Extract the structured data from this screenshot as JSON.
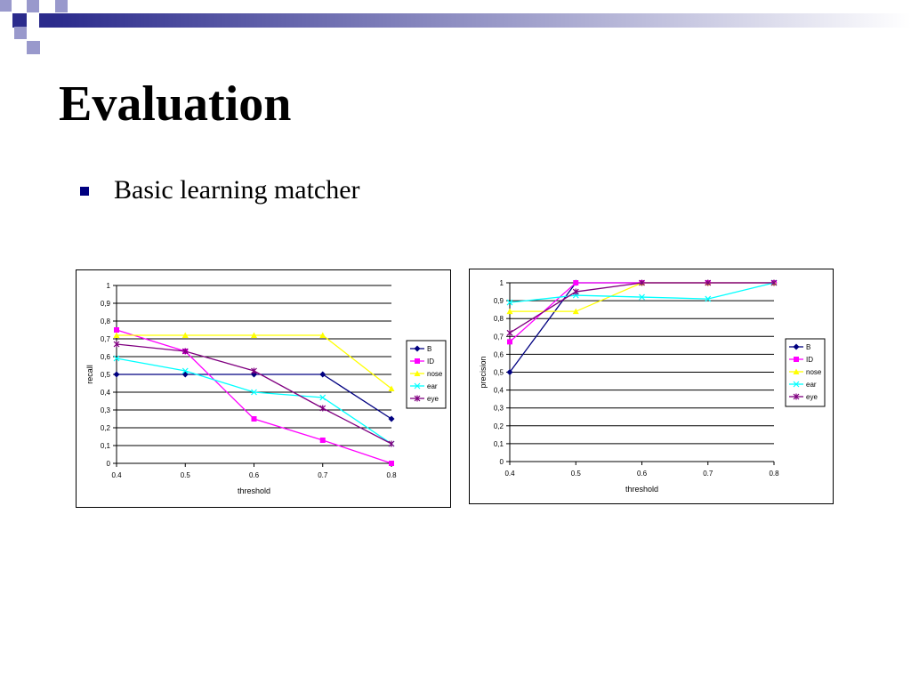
{
  "slide": {
    "title": "Evaluation",
    "bullet": "Basic learning matcher"
  },
  "theme": {
    "deco_dark": "#2b2b8c",
    "deco_light": "#9999cc",
    "bullet_color": "#000080"
  },
  "series_styles": [
    {
      "color": "#000080",
      "marker": "diamond"
    },
    {
      "color": "#ff00ff",
      "marker": "square"
    },
    {
      "color": "#ffff00",
      "marker": "triangle"
    },
    {
      "color": "#00ffff",
      "marker": "x"
    },
    {
      "color": "#800080",
      "marker": "star"
    }
  ],
  "chart_data": [
    {
      "type": "line",
      "title": "",
      "xlabel": "threshold",
      "ylabel": "recall",
      "x": [
        "0.4",
        "0.5",
        "0.6",
        "0.7",
        "0.8"
      ],
      "y_ticks": [
        "0",
        "0,1",
        "0,2",
        "0,3",
        "0,4",
        "0,5",
        "0,6",
        "0,7",
        "0,8",
        "0,9",
        "1"
      ],
      "ylim": [
        0,
        1
      ],
      "grid": true,
      "legend": "right",
      "series": [
        {
          "name": "B",
          "values": [
            0.5,
            0.5,
            0.5,
            0.5,
            0.25
          ]
        },
        {
          "name": "ID",
          "values": [
            0.75,
            0.63,
            0.25,
            0.13,
            0.0
          ]
        },
        {
          "name": "nose",
          "values": [
            0.72,
            0.72,
            0.72,
            0.72,
            0.42
          ]
        },
        {
          "name": "ear",
          "values": [
            0.59,
            0.52,
            0.4,
            0.37,
            0.11
          ]
        },
        {
          "name": "eye",
          "values": [
            0.67,
            0.63,
            0.52,
            0.31,
            0.11
          ]
        }
      ]
    },
    {
      "type": "line",
      "title": "",
      "xlabel": "threshold",
      "ylabel": "precision",
      "x": [
        "0.4",
        "0.5",
        "0.6",
        "0.7",
        "0.8"
      ],
      "y_ticks": [
        "0",
        "0,1",
        "0,2",
        "0,3",
        "0,4",
        "0,5",
        "0,6",
        "0,7",
        "0,8",
        "0,9",
        "1"
      ],
      "ylim": [
        0,
        1
      ],
      "grid": true,
      "legend": "right",
      "series": [
        {
          "name": "B",
          "values": [
            0.5,
            1.0,
            1.0,
            1.0,
            1.0
          ]
        },
        {
          "name": "ID",
          "values": [
            0.67,
            1.0,
            1.0,
            1.0,
            1.0
          ]
        },
        {
          "name": "nose",
          "values": [
            0.84,
            0.84,
            1.0,
            1.0,
            1.0
          ]
        },
        {
          "name": "ear",
          "values": [
            0.89,
            0.93,
            0.92,
            0.91,
            1.0
          ]
        },
        {
          "name": "eye",
          "values": [
            0.72,
            0.95,
            1.0,
            1.0,
            1.0
          ]
        }
      ]
    }
  ]
}
